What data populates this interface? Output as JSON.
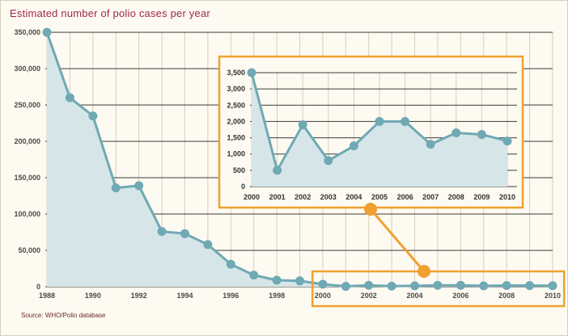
{
  "title": "Estimated number of polio cases per year",
  "source": "Source: WHO/Polio database",
  "colors": {
    "line": "#6fa9b4",
    "fill": "#d6e6e8",
    "grid": "#3a3a3a",
    "gridLight": "#d9cfb9",
    "highlight": "#f0a030",
    "background": "#fdfaf1",
    "title": "#a0284a"
  },
  "chart_data": [
    {
      "type": "area",
      "title": "Estimated number of polio cases per year",
      "x": [
        1988,
        1989,
        1990,
        1991,
        1992,
        1993,
        1994,
        1995,
        1996,
        1997,
        1998,
        1999,
        2000,
        2001,
        2002,
        2003,
        2004,
        2005,
        2006,
        2007,
        2008,
        2009,
        2010
      ],
      "y": [
        350000,
        260000,
        235000,
        136000,
        139000,
        76000,
        73000,
        58000,
        31000,
        16000,
        9000,
        8000,
        3500,
        500,
        1900,
        800,
        1250,
        2000,
        2000,
        1300,
        1650,
        1600,
        1400
      ],
      "x_tick_labels": [
        "1988",
        "1990",
        "1992",
        "1994",
        "1996",
        "1998",
        "2000",
        "2002",
        "2004",
        "2006",
        "2008",
        "2010"
      ],
      "y_tick_labels": [
        "0",
        "50,000",
        "100,000",
        "150,000",
        "200,000",
        "250,000",
        "300,000",
        "350,000"
      ],
      "ylim": [
        0,
        350000
      ],
      "xlim": [
        1988,
        2010
      ],
      "grid": true
    },
    {
      "type": "area",
      "title": "",
      "x": [
        2000,
        2001,
        2002,
        2003,
        2004,
        2005,
        2006,
        2007,
        2008,
        2009,
        2010
      ],
      "y": [
        3500,
        500,
        1900,
        800,
        1250,
        2000,
        2000,
        1300,
        1650,
        1600,
        1400
      ],
      "x_tick_labels": [
        "2000",
        "2001",
        "2002",
        "2003",
        "2004",
        "2005",
        "2006",
        "2007",
        "2008",
        "2009",
        "2010"
      ],
      "y_tick_labels": [
        "0",
        "500",
        "1,000",
        "1,500",
        "2,000",
        "2,500",
        "3,000",
        "3,500"
      ],
      "ylim": [
        0,
        3500
      ],
      "xlim": [
        2000,
        2010
      ],
      "grid": true
    }
  ]
}
